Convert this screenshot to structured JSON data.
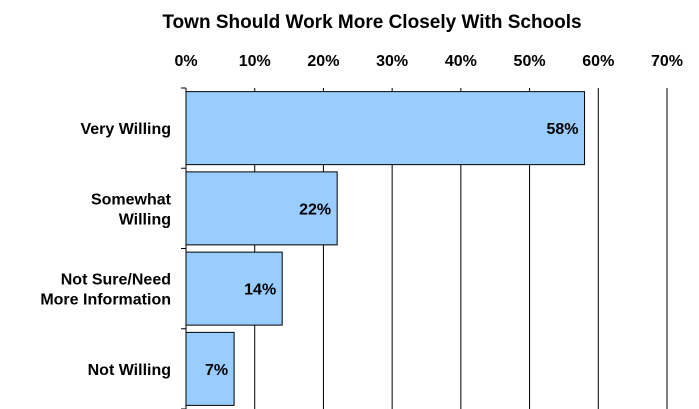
{
  "chart_data": {
    "type": "bar",
    "orientation": "horizontal",
    "title": "Town Should Work More Closely With Schools",
    "categories": [
      [
        "Very Willing"
      ],
      [
        "Somewhat",
        "Willing"
      ],
      [
        "Not Sure/Need",
        "More Information"
      ],
      [
        "Not Willing"
      ]
    ],
    "values": [
      58,
      22,
      14,
      7
    ],
    "data_labels": [
      "58%",
      "22%",
      "14%",
      "7%"
    ],
    "xlim": [
      0,
      70
    ],
    "x_ticks": [
      "0%",
      "10%",
      "20%",
      "30%",
      "40%",
      "50%",
      "60%",
      "70%"
    ],
    "x_axis_position": "top",
    "grid": "vertical",
    "bar_color": "#99ccff",
    "bar_edge_color": "#000000",
    "legend": "none"
  }
}
